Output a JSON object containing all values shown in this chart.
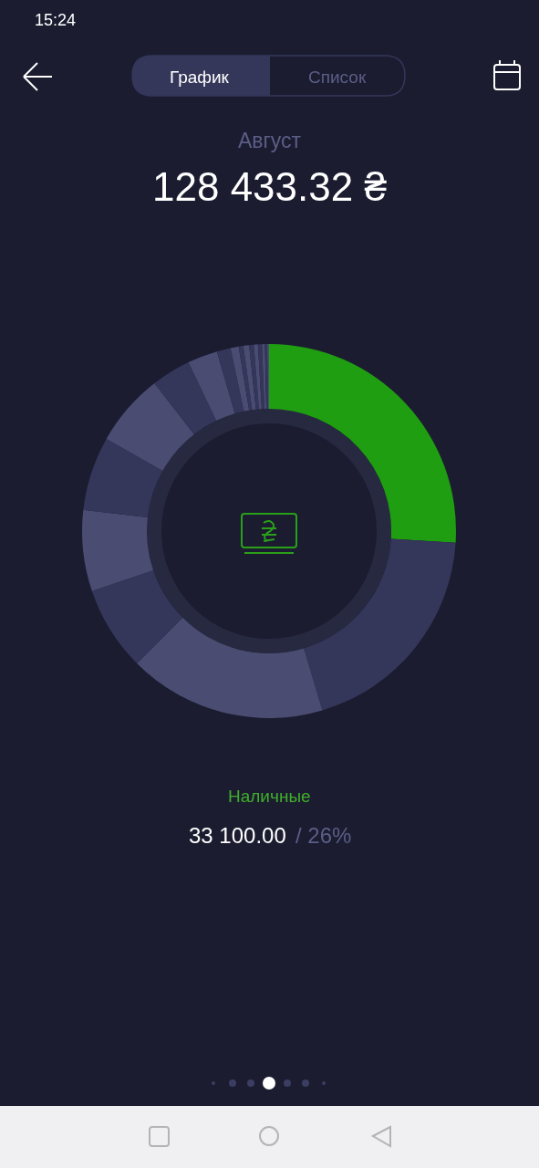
{
  "chart_data": {
    "type": "donut",
    "title": "Август",
    "subtitle": "128 433.32 ₴",
    "categories": [
      null,
      null,
      null,
      null,
      null,
      null,
      null,
      null,
      null,
      null,
      null,
      null,
      null,
      null,
      null,
      null,
      null,
      null,
      null
    ],
    "values": [
      26,
      19.4,
      17.1,
      7.3,
      7.0,
      6.4,
      6.3,
      3.4,
      2.6,
      1.2,
      0.7,
      0.4,
      0.5,
      0.4,
      0.35,
      0.35,
      0.25,
      0.2,
      0.15
    ],
    "colors": [
      "#1f9e12",
      "#34365a",
      "#4a4c72",
      "#34365a",
      "#4a4c72",
      "#34365a",
      "#4a4c72",
      "#34365a",
      "#4a4c72",
      "#34365a",
      "#4a4c72",
      "#34365a",
      "#4a4c72",
      "#34365a",
      "#4a4c72",
      "#34365a",
      "#4a4c72",
      "#34365a",
      "#4a4c72"
    ],
    "annotations": [
      "15:24",
      "График",
      "Список",
      "Наличные",
      "33 100.00",
      "/ 26%"
    ],
    "legend": false
  }
}
